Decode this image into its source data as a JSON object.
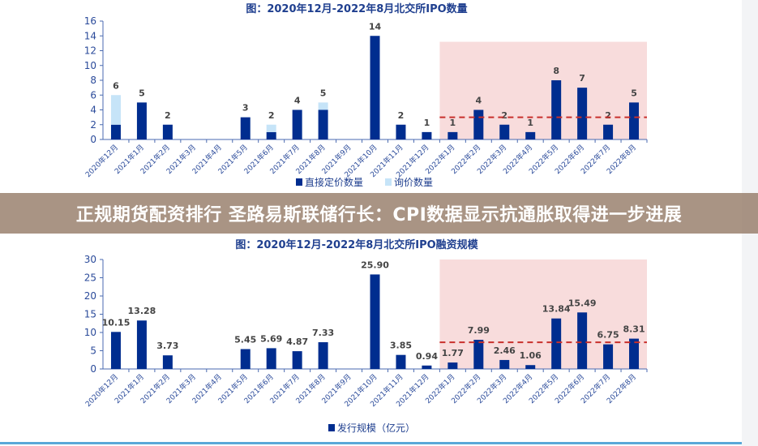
{
  "banner": {
    "headline": "正规期货配资排行 圣路易斯联储行长：CPI数据显示抗通胀取得进一步进展"
  },
  "colors": {
    "primary": "#002d8f",
    "secondary": "#c6e4f8",
    "highlight": "#f8dcdc",
    "reference": "#c8302c"
  },
  "chart_data": [
    {
      "type": "bar",
      "stacked": true,
      "title": "图：2020年12月-2022年8月北交所IPO数量",
      "categories": [
        "2020年12月",
        "2021年1月",
        "2021年2月",
        "2021年3月",
        "2021年4月",
        "2021年5月",
        "2021年6月",
        "2021年7月",
        "2021年8月",
        "2021年9月",
        "2021年10月",
        "2021年11月",
        "2021年12月",
        "2022年1月",
        "2022年2月",
        "2022年3月",
        "2022年4月",
        "2022年5月",
        "2022年6月",
        "2022年7月",
        "2022年8月"
      ],
      "series": [
        {
          "name": "直接定价数量",
          "values": [
            2,
            5,
            2,
            0,
            0,
            3,
            1,
            4,
            4,
            0,
            14,
            2,
            1,
            1,
            4,
            2,
            1,
            8,
            7,
            2,
            5
          ]
        },
        {
          "name": "询价数量",
          "values": [
            4,
            0,
            0,
            0,
            0,
            0,
            1,
            0,
            1,
            0,
            0,
            0,
            0,
            0,
            0,
            0,
            0,
            0,
            0,
            0,
            0
          ]
        }
      ],
      "data_labels": [
        "6",
        "5",
        "2",
        "",
        "",
        "3",
        "2",
        "4",
        "5",
        "",
        "14",
        "2",
        "1",
        "1",
        "4",
        "2",
        "1",
        "8",
        "7",
        "2",
        "5"
      ],
      "ylim": [
        0,
        16
      ],
      "yticks": [
        "0",
        "2",
        "4",
        "6",
        "8",
        "10",
        "12",
        "14",
        "16"
      ],
      "reference_line": 3,
      "highlight_range": [
        "2022年1月",
        "2022年8月"
      ],
      "legend": "bottom"
    },
    {
      "type": "bar",
      "title": "图：2020年12月-2022年8月北交所IPO融资规模",
      "categories": [
        "2020年12月",
        "2021年1月",
        "2021年2月",
        "2021年3月",
        "2021年4月",
        "2021年5月",
        "2021年6月",
        "2021年7月",
        "2021年8月",
        "2021年9月",
        "2021年10月",
        "2021年11月",
        "2021年12月",
        "2022年1月",
        "2022年2月",
        "2022年3月",
        "2022年4月",
        "2022年5月",
        "2022年6月",
        "2022年7月",
        "2022年8月"
      ],
      "series": [
        {
          "name": "发行规模（亿元）",
          "values": [
            10.15,
            13.28,
            3.73,
            0,
            0,
            5.45,
            5.69,
            4.87,
            7.33,
            0,
            25.9,
            3.85,
            0.94,
            1.77,
            7.99,
            2.46,
            1.06,
            13.84,
            15.49,
            6.75,
            8.31
          ]
        }
      ],
      "data_labels": [
        "10.15",
        "13.28",
        "3.73",
        "",
        "",
        "5.45",
        "5.69",
        "4.87",
        "7.33",
        "",
        "25.90",
        "3.85",
        "0.94",
        "1.77",
        "7.99",
        "2.46",
        "1.06",
        "13.84",
        "15.49",
        "6.75",
        "8.31"
      ],
      "ylim": [
        0,
        30
      ],
      "yticks": [
        "0",
        "5",
        "10",
        "15",
        "20",
        "25",
        "30"
      ],
      "reference_line": 7.3,
      "highlight_range": [
        "2022年1月",
        "2022年8月"
      ],
      "legend": "bottom"
    }
  ]
}
